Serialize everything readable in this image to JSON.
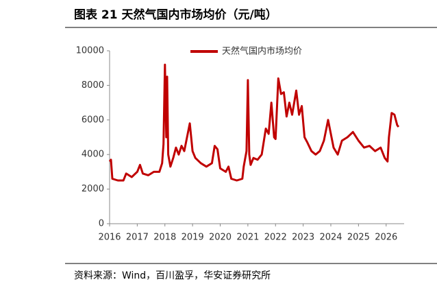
{
  "chart_data": {
    "type": "line",
    "title": "图表 21 天然气国内市场均价（元/吨）",
    "source": "资料来源：Wind，百川盈孚，华安证券研究所",
    "x": [
      2016.0,
      2016.05,
      2016.1,
      2016.3,
      2016.5,
      2016.6,
      2016.8,
      2017.0,
      2017.1,
      2017.2,
      2017.4,
      2017.6,
      2017.8,
      2017.9,
      2017.95,
      2018.0,
      2018.05,
      2018.08,
      2018.12,
      2018.2,
      2018.3,
      2018.4,
      2018.5,
      2018.6,
      2018.7,
      2018.9,
      2019.0,
      2019.1,
      2019.3,
      2019.5,
      2019.7,
      2019.8,
      2019.9,
      2020.0,
      2020.2,
      2020.3,
      2020.4,
      2020.6,
      2020.8,
      2020.85,
      2020.95,
      2021.0,
      2021.05,
      2021.1,
      2021.2,
      2021.35,
      2021.5,
      2021.65,
      2021.75,
      2021.85,
      2021.95,
      2022.0,
      2022.1,
      2022.2,
      2022.3,
      2022.4,
      2022.5,
      2022.6,
      2022.75,
      2022.85,
      2022.95,
      2023.05,
      2023.15,
      2023.3,
      2023.45,
      2023.6,
      2023.75,
      2023.9,
      2024.0,
      2024.1,
      2024.25,
      2024.4,
      2024.6,
      2024.8,
      2025.0,
      2025.2,
      2025.4,
      2025.6,
      2025.8,
      2025.95,
      2026.05,
      2026.1,
      2026.2,
      2026.3,
      2026.4,
      2026.45
    ],
    "series": [
      {
        "name": "天然气国内市场均价",
        "color": "#c00000",
        "values": [
          3600,
          3700,
          2600,
          2500,
          2500,
          2900,
          2700,
          3000,
          3400,
          2900,
          2800,
          3000,
          3000,
          3500,
          4600,
          9200,
          5000,
          8500,
          4000,
          3300,
          3800,
          4400,
          4000,
          4500,
          4200,
          5800,
          4200,
          3800,
          3500,
          3300,
          3500,
          4500,
          4300,
          3200,
          3000,
          3300,
          2600,
          2500,
          2600,
          3300,
          4200,
          8300,
          4000,
          3400,
          3800,
          3700,
          4000,
          5500,
          5200,
          7000,
          5000,
          4900,
          8400,
          7500,
          7600,
          6200,
          7000,
          6300,
          7700,
          6300,
          6800,
          5000,
          4700,
          4200,
          4000,
          4200,
          4800,
          6000,
          5200,
          4400,
          4000,
          4800,
          5000,
          5300,
          4800,
          4400,
          4500,
          4200,
          4400,
          3800,
          3600,
          5000,
          6400,
          6300,
          5700,
          5600
        ]
      }
    ],
    "xlim": [
      2016,
      2026.65
    ],
    "xticks": [
      2016,
      2017,
      2018,
      2019,
      2020,
      2021,
      2022,
      2023,
      2024,
      2025,
      2026
    ],
    "ylim": [
      0,
      10000
    ],
    "yticks": [
      0,
      2000,
      4000,
      6000,
      8000,
      10000
    ]
  }
}
